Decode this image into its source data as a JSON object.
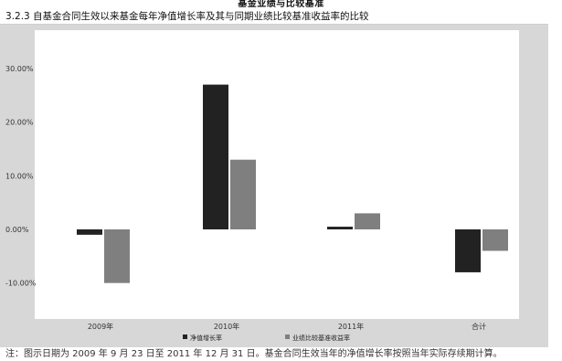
{
  "page": {
    "top_title": "基金业绩与比较基准",
    "section_title": "3.2.3 自基金合同生效以来基金每年净值增长率及其与同期业绩比较基准收益率的比较",
    "note": "注：图示日期为 2009 年 9 月 23 日至 2011 年 12 月 31 日。基金合同生效当年的净值增长率按照当年实际存续期计算。"
  },
  "chart_data": {
    "type": "bar",
    "categories": [
      "2009年",
      "2010年",
      "2011年",
      "合计"
    ],
    "series": [
      {
        "name": "净值增长率",
        "values": [
          -1.0,
          27.0,
          0.5,
          -8.0
        ],
        "color": "#222222"
      },
      {
        "name": "业绩比较基准收益率",
        "values": [
          -10.0,
          13.0,
          3.0,
          -4.0
        ],
        "color": "#7f7f7f"
      }
    ],
    "y_ticks": [
      -10,
      0,
      10,
      20,
      30
    ],
    "y_tick_labels": [
      "-10.00%",
      "0.00%",
      "10.00%",
      "20.00%",
      "30.00%"
    ],
    "ylim": [
      -12,
      32
    ],
    "grid": false,
    "legend_position": "bottom"
  }
}
